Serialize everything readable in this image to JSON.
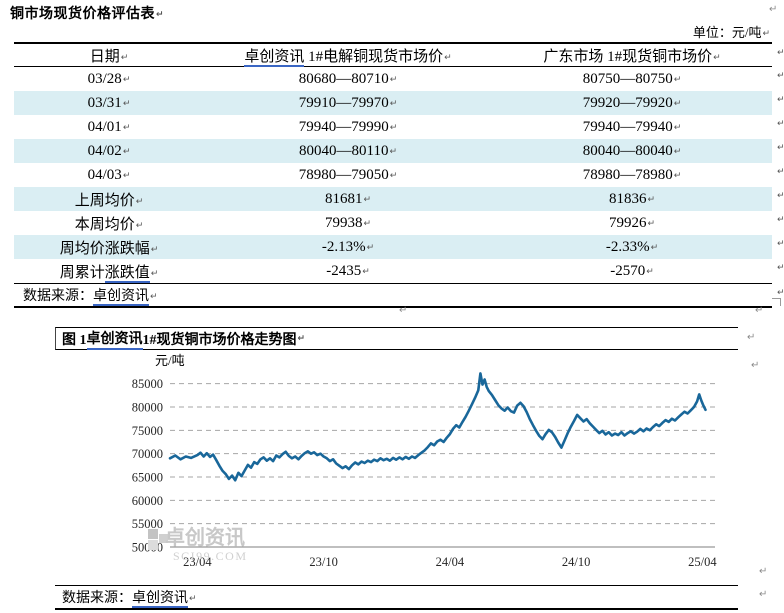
{
  "marks": {
    "pilcrow": "↵"
  },
  "colors": {
    "row_highlight": "#DAEEF3",
    "link_underline": "#3A66C4",
    "chart_line": "#19679A",
    "gridline": "#A6A6A6",
    "watermark_gray": "#C8C8C8"
  },
  "header": {
    "title": "铜市场现货价格评估表",
    "unit": "单位：元/吨"
  },
  "table": {
    "header": [
      [
        {
          "t": "日期"
        }
      ],
      [
        {
          "t": "卓创资讯",
          "link": true
        },
        {
          "t": " 1#电解铜现货市场价"
        }
      ],
      [
        {
          "t": "广东市场 1#现货铜市场价"
        }
      ]
    ],
    "rows": [
      {
        "highlight": false,
        "cells": [
          [
            {
              "t": "03/28"
            }
          ],
          [
            {
              "t": "80680—80710"
            }
          ],
          [
            {
              "t": "80750—80750"
            }
          ]
        ]
      },
      {
        "highlight": true,
        "cells": [
          [
            {
              "t": "03/31"
            }
          ],
          [
            {
              "t": "79910—79970"
            }
          ],
          [
            {
              "t": "79920—79920"
            }
          ]
        ]
      },
      {
        "highlight": false,
        "cells": [
          [
            {
              "t": "04/01"
            }
          ],
          [
            {
              "t": "79940—79990"
            }
          ],
          [
            {
              "t": "79940—79940"
            }
          ]
        ]
      },
      {
        "highlight": true,
        "cells": [
          [
            {
              "t": "04/02"
            }
          ],
          [
            {
              "t": "80040—80110"
            }
          ],
          [
            {
              "t": "80040—80040"
            }
          ]
        ]
      },
      {
        "highlight": false,
        "cells": [
          [
            {
              "t": "04/03"
            }
          ],
          [
            {
              "t": "78980—79050"
            }
          ],
          [
            {
              "t": "78980—78980"
            }
          ]
        ]
      },
      {
        "highlight": true,
        "cells": [
          [
            {
              "t": "上周均价"
            }
          ],
          [
            {
              "t": "81681"
            }
          ],
          [
            {
              "t": "81836"
            }
          ]
        ]
      },
      {
        "highlight": false,
        "cells": [
          [
            {
              "t": "本周均价"
            }
          ],
          [
            {
              "t": "79938"
            }
          ],
          [
            {
              "t": "79926"
            }
          ]
        ]
      },
      {
        "highlight": true,
        "cells": [
          [
            {
              "t": "周均价涨跌幅"
            }
          ],
          [
            {
              "t": "-2.13%"
            }
          ],
          [
            {
              "t": "-2.33%"
            }
          ]
        ]
      },
      {
        "highlight": false,
        "cells": [
          [
            {
              "t": "周累计"
            },
            {
              "t": "涨跌值",
              "link": true
            }
          ],
          [
            {
              "t": "-2435"
            }
          ],
          [
            {
              "t": "-2570"
            }
          ]
        ]
      }
    ],
    "source": [
      {
        "t": "数据来源："
      },
      {
        "t": "卓创资讯",
        "link": true
      }
    ]
  },
  "figure": {
    "caption": [
      {
        "t": "图 1 "
      },
      {
        "t": "卓创资讯",
        "link": true
      },
      {
        "t": " 1#现货铜市场价格走势图"
      }
    ],
    "y_unit": "元/吨",
    "watermark": {
      "cn": "卓创资讯",
      "en": "SCI99.COM"
    },
    "source": [
      {
        "t": "数据来源："
      },
      {
        "t": "卓创资讯",
        "link": true
      }
    ]
  },
  "chart_data": {
    "type": "line",
    "title": "图1 卓创资讯1#现货铜市场价格走势图",
    "xlabel": "",
    "ylabel": "元/吨",
    "ylim": [
      50000,
      87500
    ],
    "yticks": [
      50000,
      55000,
      60000,
      65000,
      70000,
      75000,
      80000,
      85000
    ],
    "xlim": [
      -1.3,
      24.6
    ],
    "xtick_t": [
      0,
      6,
      12,
      18,
      24
    ],
    "xtick_labels": [
      "23/04",
      "23/10",
      "24/04",
      "24/10",
      "25/04"
    ],
    "grid": "dashed-horizontal",
    "legend": "none",
    "series": [
      {
        "name": "卓创资讯1#现货铜市场价",
        "color": "#19679A",
        "x_unit": "months-from-2023/04",
        "points": [
          [
            -1.3,
            69000
          ],
          [
            -1.05,
            69600
          ],
          [
            -0.8,
            68800
          ],
          [
            -0.55,
            69400
          ],
          [
            -0.3,
            69100
          ],
          [
            0,
            69700
          ],
          [
            0.15,
            70200
          ],
          [
            0.3,
            69400
          ],
          [
            0.45,
            70100
          ],
          [
            0.6,
            69300
          ],
          [
            0.75,
            69800
          ],
          [
            0.9,
            68600
          ],
          [
            1.05,
            67400
          ],
          [
            1.2,
            66300
          ],
          [
            1.35,
            65600
          ],
          [
            1.5,
            64600
          ],
          [
            1.65,
            65300
          ],
          [
            1.8,
            64300
          ],
          [
            1.95,
            65900
          ],
          [
            2.1,
            65200
          ],
          [
            2.25,
            66400
          ],
          [
            2.4,
            67600
          ],
          [
            2.55,
            67000
          ],
          [
            2.7,
            68200
          ],
          [
            2.85,
            67800
          ],
          [
            3.0,
            68800
          ],
          [
            3.15,
            69200
          ],
          [
            3.3,
            68500
          ],
          [
            3.45,
            69000
          ],
          [
            3.6,
            68400
          ],
          [
            3.75,
            69600
          ],
          [
            3.9,
            69200
          ],
          [
            4.05,
            69900
          ],
          [
            4.2,
            70400
          ],
          [
            4.35,
            69500
          ],
          [
            4.5,
            69000
          ],
          [
            4.65,
            69400
          ],
          [
            4.8,
            68800
          ],
          [
            4.95,
            69500
          ],
          [
            5.1,
            70100
          ],
          [
            5.25,
            70500
          ],
          [
            5.4,
            70000
          ],
          [
            5.55,
            70300
          ],
          [
            5.7,
            69700
          ],
          [
            5.85,
            70000
          ],
          [
            6.0,
            69400
          ],
          [
            6.15,
            69000
          ],
          [
            6.3,
            68400
          ],
          [
            6.45,
            68800
          ],
          [
            6.6,
            67900
          ],
          [
            6.75,
            67400
          ],
          [
            6.9,
            66900
          ],
          [
            7.05,
            67300
          ],
          [
            7.2,
            66700
          ],
          [
            7.35,
            67500
          ],
          [
            7.5,
            68100
          ],
          [
            7.65,
            67700
          ],
          [
            7.8,
            68300
          ],
          [
            7.95,
            68000
          ],
          [
            8.1,
            68500
          ],
          [
            8.25,
            68200
          ],
          [
            8.4,
            68700
          ],
          [
            8.55,
            68400
          ],
          [
            8.7,
            69000
          ],
          [
            8.85,
            68600
          ],
          [
            9.0,
            68900
          ],
          [
            9.15,
            68500
          ],
          [
            9.3,
            69100
          ],
          [
            9.45,
            68700
          ],
          [
            9.6,
            69200
          ],
          [
            9.75,
            68800
          ],
          [
            9.9,
            69300
          ],
          [
            10.05,
            68900
          ],
          [
            10.2,
            69400
          ],
          [
            10.35,
            69100
          ],
          [
            10.5,
            69700
          ],
          [
            10.65,
            70200
          ],
          [
            10.8,
            70700
          ],
          [
            10.95,
            71400
          ],
          [
            11.1,
            72200
          ],
          [
            11.25,
            71800
          ],
          [
            11.4,
            72600
          ],
          [
            11.55,
            73000
          ],
          [
            11.7,
            72500
          ],
          [
            11.85,
            73400
          ],
          [
            12.0,
            74200
          ],
          [
            12.15,
            75300
          ],
          [
            12.3,
            76100
          ],
          [
            12.45,
            75600
          ],
          [
            12.6,
            76800
          ],
          [
            12.75,
            77900
          ],
          [
            12.9,
            79200
          ],
          [
            13.05,
            80600
          ],
          [
            13.2,
            82000
          ],
          [
            13.35,
            83600
          ],
          [
            13.45,
            87200
          ],
          [
            13.55,
            84800
          ],
          [
            13.65,
            85900
          ],
          [
            13.75,
            84300
          ],
          [
            13.85,
            83400
          ],
          [
            14.0,
            82600
          ],
          [
            14.15,
            81500
          ],
          [
            14.3,
            80400
          ],
          [
            14.45,
            79700
          ],
          [
            14.6,
            79200
          ],
          [
            14.75,
            79900
          ],
          [
            14.9,
            79100
          ],
          [
            15.05,
            78800
          ],
          [
            15.2,
            80300
          ],
          [
            15.35,
            80900
          ],
          [
            15.5,
            80200
          ],
          [
            15.65,
            78900
          ],
          [
            15.8,
            77400
          ],
          [
            15.95,
            76100
          ],
          [
            16.1,
            74900
          ],
          [
            16.25,
            73800
          ],
          [
            16.4,
            73100
          ],
          [
            16.55,
            74200
          ],
          [
            16.7,
            75100
          ],
          [
            16.85,
            74600
          ],
          [
            17.0,
            73600
          ],
          [
            17.15,
            72400
          ],
          [
            17.3,
            71300
          ],
          [
            17.45,
            72800
          ],
          [
            17.6,
            74400
          ],
          [
            17.75,
            75800
          ],
          [
            17.9,
            77000
          ],
          [
            18.05,
            78300
          ],
          [
            18.2,
            77600
          ],
          [
            18.35,
            76900
          ],
          [
            18.5,
            77400
          ],
          [
            18.65,
            76500
          ],
          [
            18.8,
            75800
          ],
          [
            18.95,
            75100
          ],
          [
            19.1,
            74400
          ],
          [
            19.25,
            74900
          ],
          [
            19.4,
            74100
          ],
          [
            19.55,
            74600
          ],
          [
            19.7,
            73900
          ],
          [
            19.85,
            74300
          ],
          [
            20.0,
            74000
          ],
          [
            20.15,
            74600
          ],
          [
            20.3,
            73900
          ],
          [
            20.45,
            74400
          ],
          [
            20.6,
            74800
          ],
          [
            20.75,
            74300
          ],
          [
            20.9,
            74700
          ],
          [
            21.05,
            75300
          ],
          [
            21.2,
            74800
          ],
          [
            21.35,
            75400
          ],
          [
            21.5,
            75000
          ],
          [
            21.65,
            75700
          ],
          [
            21.8,
            76300
          ],
          [
            21.95,
            75900
          ],
          [
            22.1,
            76600
          ],
          [
            22.25,
            77200
          ],
          [
            22.4,
            76800
          ],
          [
            22.55,
            77500
          ],
          [
            22.7,
            77100
          ],
          [
            22.85,
            77800
          ],
          [
            23.0,
            78400
          ],
          [
            23.15,
            79000
          ],
          [
            23.3,
            78600
          ],
          [
            23.45,
            79300
          ],
          [
            23.6,
            80000
          ],
          [
            23.75,
            81200
          ],
          [
            23.85,
            82700
          ],
          [
            23.95,
            81400
          ],
          [
            24.05,
            80300
          ],
          [
            24.15,
            79400
          ]
        ]
      }
    ]
  }
}
